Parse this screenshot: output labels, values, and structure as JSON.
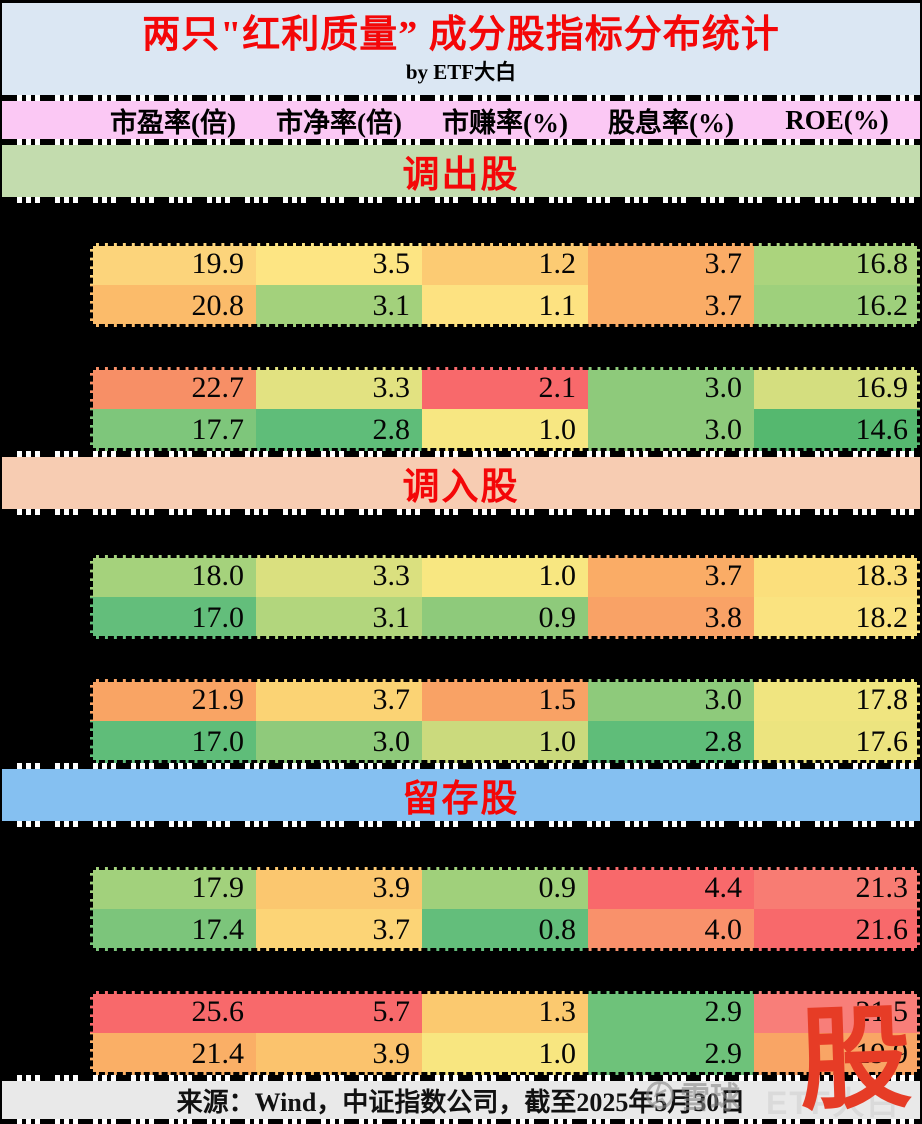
{
  "header": {
    "title": "两只\"红利质量” 成分股指标分布统计",
    "subtitle": "by ETF大白"
  },
  "chart_data": {
    "type": "heatmap-table",
    "columns": [
      "市盈率(倍)",
      "市净率(倍)",
      "市赚率(%)",
      "股息率(%)",
      "ROE(%)"
    ],
    "color_scale": {
      "min_green": "#63be7b",
      "mid_yellow": "#ffeb84",
      "max_red": "#f8696b"
    },
    "sections": [
      {
        "label": "调出股",
        "band_color": "#c3dcae",
        "blocks": [
          {
            "rows": [
              {
                "values": [
                  "19.9",
                  "3.5",
                  "1.2",
                  "3.7",
                  "16.8"
                ],
                "colors": [
                  "#fcd47b",
                  "#fde583",
                  "#fccb73",
                  "#faac66",
                  "#abd47d"
                ]
              },
              {
                "values": [
                  "20.8",
                  "3.1",
                  "1.1",
                  "3.7",
                  "16.2"
                ],
                "colors": [
                  "#fbbb6a",
                  "#a3d17c",
                  "#fde281",
                  "#faac66",
                  "#9ed07c"
                ]
              }
            ]
          },
          {
            "rows": [
              {
                "values": [
                  "22.7",
                  "3.3",
                  "2.1",
                  "3.0",
                  "16.9"
                ],
                "colors": [
                  "#f78f66",
                  "#e2e281",
                  "#f8696b",
                  "#8eca7b",
                  "#d4de7f"
                ]
              },
              {
                "values": [
                  "17.7",
                  "2.8",
                  "1.0",
                  "3.0",
                  "14.6"
                ],
                "colors": [
                  "#7ec67b",
                  "#5fbd79",
                  "#f7e782",
                  "#8eca7b",
                  "#55b86f"
                ]
              }
            ]
          }
        ]
      },
      {
        "label": "调入股",
        "band_color": "#f7ccb2",
        "blocks": [
          {
            "rows": [
              {
                "values": [
                  "18.0",
                  "3.3",
                  "1.0",
                  "3.7",
                  "18.3"
                ],
                "colors": [
                  "#a5d27c",
                  "#dae07f",
                  "#f8e781",
                  "#faac66",
                  "#fbdf7c"
                ]
              },
              {
                "values": [
                  "17.0",
                  "3.1",
                  "0.9",
                  "3.8",
                  "18.2"
                ],
                "colors": [
                  "#63be7b",
                  "#b2d67d",
                  "#8eca7b",
                  "#f9a266",
                  "#fae380"
                ]
              }
            ]
          },
          {
            "rows": [
              {
                "values": [
                  "21.9",
                  "3.7",
                  "1.5",
                  "3.0",
                  "17.8"
                ],
                "colors": [
                  "#f9a464",
                  "#fbd374",
                  "#f9a265",
                  "#8eca7b",
                  "#f0e580"
                ]
              },
              {
                "values": [
                  "17.0",
                  "3.0",
                  "1.0",
                  "2.8",
                  "17.6"
                ],
                "colors": [
                  "#5fbd79",
                  "#8fca7b",
                  "#cbda7d",
                  "#5fbd79",
                  "#ece47f"
                ]
              }
            ]
          }
        ]
      },
      {
        "label": "留存股",
        "band_color": "#85c0f1",
        "blocks": [
          {
            "rows": [
              {
                "values": [
                  "17.9",
                  "3.9",
                  "0.9",
                  "4.4",
                  "21.3"
                ],
                "colors": [
                  "#a2d17c",
                  "#fbc76f",
                  "#a0d07b",
                  "#f8696b",
                  "#f87c73"
                ]
              },
              {
                "values": [
                  "17.4",
                  "3.7",
                  "0.8",
                  "4.0",
                  "21.6"
                ],
                "colors": [
                  "#7cc57b",
                  "#fcd476",
                  "#63be7b",
                  "#f9916b",
                  "#f8696b"
                ]
              }
            ]
          },
          {
            "rows": [
              {
                "values": [
                  "25.6",
                  "5.7",
                  "1.3",
                  "2.9",
                  "21.5"
                ],
                "colors": [
                  "#f8696b",
                  "#f8696b",
                  "#fbc96f",
                  "#6ec27a",
                  "#f87e79"
                ]
              },
              {
                "values": [
                  "21.4",
                  "3.9",
                  "1.0",
                  "2.9",
                  "19.9"
                ],
                "colors": [
                  "#faaf66",
                  "#fbc36d",
                  "#f8e680",
                  "#6ec27a",
                  "#f9a565"
                ]
              }
            ]
          }
        ]
      }
    ]
  },
  "footer": {
    "source": "来源：Wind，中证指数公司，截至2025年5月30日"
  },
  "watermark": {
    "site": "雪球",
    "handle": "ETF大白",
    "stamp": "股"
  }
}
